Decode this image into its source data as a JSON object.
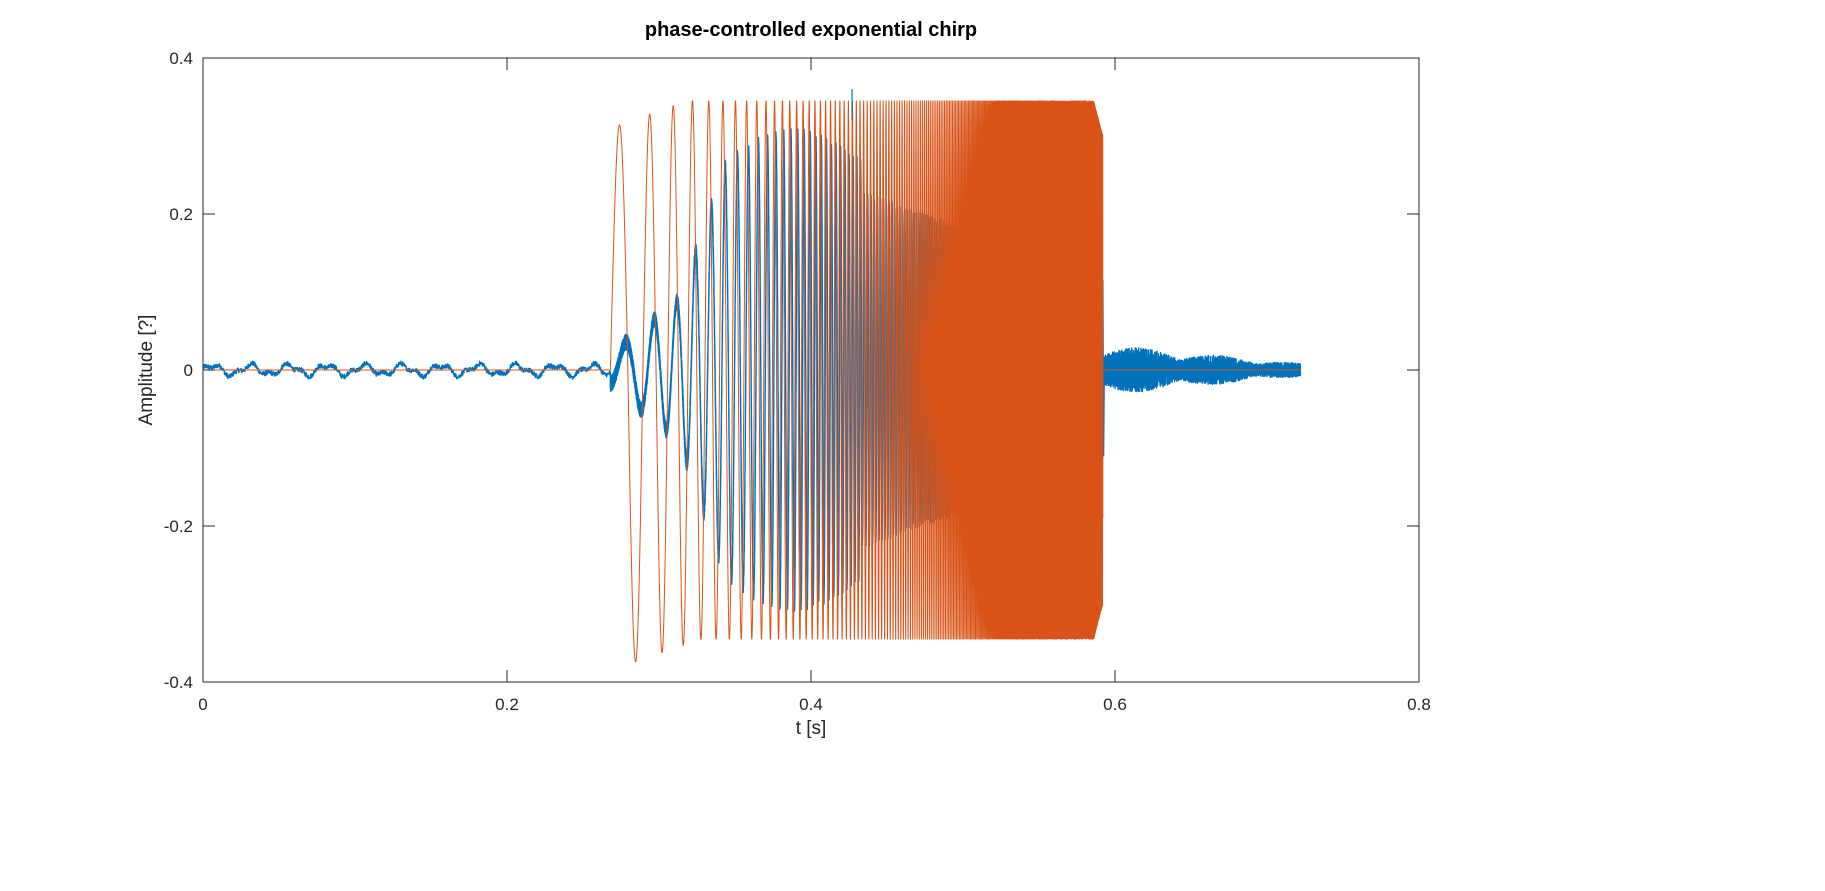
{
  "chart_data": {
    "type": "line",
    "title": "phase-controlled exponential chirp",
    "xlabel": "t [s]",
    "ylabel": "Amplitude [?]",
    "xlim": [
      0,
      0.8
    ],
    "ylim": [
      -0.4,
      0.4
    ],
    "xticks": [
      0,
      0.2,
      0.4,
      0.6,
      0.8
    ],
    "xtick_labels": [
      "0",
      "0.2",
      "0.4",
      "0.6",
      "0.8"
    ],
    "yticks": [
      -0.4,
      -0.2,
      0,
      0.2,
      0.4
    ],
    "ytick_labels": [
      "-0.4",
      "-0.2",
      "0",
      "0.2",
      "0.4"
    ],
    "grid": false,
    "legend": "none",
    "series": [
      {
        "color": "#0072BD",
        "description_values": {
          "t_start": 0,
          "t_end": 0.722,
          "pre_signal_noise_amplitude": 0.01,
          "response_start": 0.268,
          "response_end": 0.592,
          "response_peak": 0.36,
          "response_peak_time": 0.427,
          "tail_noise_amplitude": 0.03
        },
        "points": [
          [
            0.0,
            -0.002
          ],
          [
            0.015,
            0.005
          ],
          [
            0.03,
            -0.003
          ],
          [
            0.05,
            0.004
          ],
          [
            0.075,
            0.006
          ],
          [
            0.1,
            -0.002
          ],
          [
            0.125,
            0.004
          ],
          [
            0.15,
            -0.001
          ],
          [
            0.175,
            0.003
          ],
          [
            0.2,
            -0.002
          ],
          [
            0.225,
            0.002
          ],
          [
            0.25,
            0.001
          ],
          [
            0.268,
            0.005
          ],
          [
            0.272,
            0.012
          ],
          [
            0.278,
            -0.012
          ],
          [
            0.285,
            0.02
          ],
          [
            0.29,
            0.028
          ],
          [
            0.297,
            0.005
          ],
          [
            0.305,
            -0.028
          ],
          [
            0.31,
            -0.01
          ],
          [
            0.315,
            0.06
          ],
          [
            0.32,
            0.087
          ],
          [
            0.325,
            0.02
          ],
          [
            0.33,
            -0.1
          ],
          [
            0.335,
            -0.16
          ],
          [
            0.34,
            0.12
          ],
          [
            0.343,
            0.242
          ],
          [
            0.35,
            0.0
          ],
          [
            0.353,
            -0.25
          ],
          [
            0.36,
            0.21
          ],
          [
            0.365,
            -0.22
          ],
          [
            0.37,
            0.2
          ],
          [
            0.375,
            -0.26
          ],
          [
            0.38,
            0.24
          ],
          [
            0.385,
            -0.28
          ],
          [
            0.39,
            0.28
          ],
          [
            0.395,
            -0.29
          ],
          [
            0.4,
            0.29
          ],
          [
            0.405,
            -0.3
          ],
          [
            0.41,
            0.25
          ],
          [
            0.415,
            -0.22
          ],
          [
            0.42,
            0.2
          ],
          [
            0.427,
            0.36
          ],
          [
            0.43,
            -0.22
          ],
          [
            0.44,
            0.2
          ],
          [
            0.45,
            -0.18
          ],
          [
            0.46,
            0.18
          ],
          [
            0.47,
            -0.17
          ],
          [
            0.48,
            0.16
          ],
          [
            0.49,
            -0.15
          ],
          [
            0.5,
            0.15
          ],
          [
            0.51,
            -0.13
          ],
          [
            0.52,
            0.13
          ],
          [
            0.53,
            -0.12
          ],
          [
            0.54,
            0.12
          ],
          [
            0.55,
            -0.11
          ],
          [
            0.56,
            0.11
          ],
          [
            0.57,
            -0.1
          ],
          [
            0.58,
            0.1
          ],
          [
            0.59,
            -0.11
          ],
          [
            0.592,
            0.115
          ],
          [
            0.595,
            -0.06
          ],
          [
            0.6,
            0.05
          ],
          [
            0.61,
            -0.045
          ],
          [
            0.62,
            0.045
          ],
          [
            0.63,
            -0.04
          ],
          [
            0.64,
            0.04
          ],
          [
            0.65,
            -0.03
          ],
          [
            0.66,
            0.03
          ],
          [
            0.67,
            -0.025
          ],
          [
            0.68,
            0.02
          ],
          [
            0.69,
            -0.015
          ],
          [
            0.7,
            0.012
          ],
          [
            0.71,
            -0.01
          ],
          [
            0.722,
            0.005
          ]
        ]
      },
      {
        "color": "#D95319",
        "description_values": {
          "t_start": 0,
          "t_end": 0.722,
          "chirp_start": 0.268,
          "chirp_end": 0.592,
          "first_peak": 0.31,
          "first_trough": -0.385,
          "steady_amplitude": 0.345,
          "off_value": 0
        },
        "points": [
          [
            0.0,
            0
          ],
          [
            0.268,
            0
          ],
          [
            0.279,
            0.31
          ],
          [
            0.293,
            -0.385
          ],
          [
            0.303,
            0.0
          ],
          [
            0.31,
            0.32
          ],
          [
            0.316,
            -0.38
          ],
          [
            0.322,
            0.325
          ],
          [
            0.328,
            -0.37
          ],
          [
            0.333,
            0.328
          ],
          [
            0.338,
            -0.365
          ],
          [
            0.343,
            0.33
          ],
          [
            0.347,
            -0.36
          ],
          [
            0.352,
            0.332
          ],
          [
            0.356,
            -0.358
          ],
          [
            0.36,
            0.334
          ],
          [
            0.364,
            -0.355
          ],
          [
            0.368,
            0.336
          ],
          [
            0.372,
            -0.353
          ],
          [
            0.376,
            0.338
          ],
          [
            0.4,
            0.34
          ],
          [
            0.45,
            0.342
          ],
          [
            0.5,
            0.344
          ],
          [
            0.55,
            0.345
          ],
          [
            0.58,
            0.345
          ],
          [
            0.592,
            0.3
          ],
          [
            0.592,
            0
          ],
          [
            0.722,
            0
          ]
        ]
      }
    ]
  }
}
